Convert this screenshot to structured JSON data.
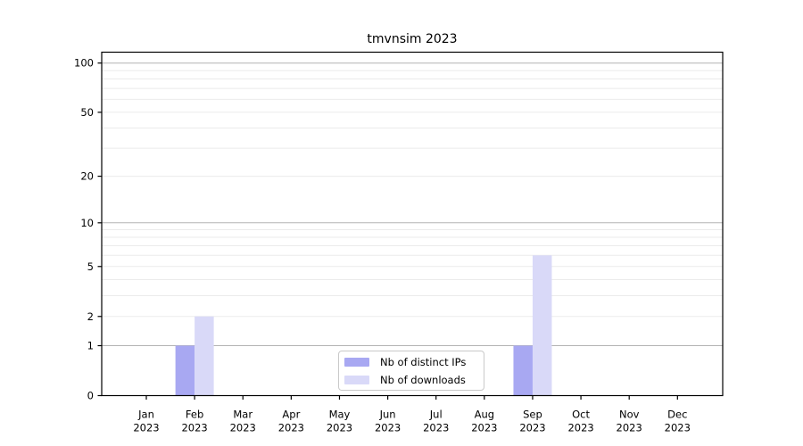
{
  "figure": {
    "title": "tmvnsim 2023"
  },
  "chart_data": {
    "type": "bar",
    "title": "tmvnsim 2023",
    "categories": [
      "Jan",
      "Feb",
      "Mar",
      "Apr",
      "May",
      "Jun",
      "Jul",
      "Aug",
      "Sep",
      "Oct",
      "Nov",
      "Dec"
    ],
    "x_year": "2023",
    "series": [
      {
        "name": "Nb of distinct IPs",
        "color": "#a8a8f2",
        "values": [
          0,
          1,
          0,
          0,
          0,
          0,
          0,
          0,
          1,
          0,
          0,
          0
        ]
      },
      {
        "name": "Nb of downloads",
        "color": "#d9d9f8",
        "values": [
          0,
          2,
          0,
          0,
          0,
          0,
          0,
          0,
          6,
          0,
          0,
          0
        ]
      }
    ],
    "y_scale": "log10(value+1)",
    "y_ticks": [
      0,
      1,
      2,
      5,
      10,
      20,
      50,
      100
    ],
    "y_decade_gridlines": [
      1,
      10,
      100
    ],
    "y_minor_gridlines": [
      2,
      3,
      4,
      5,
      6,
      7,
      8,
      9,
      20,
      30,
      40,
      50,
      60,
      70,
      80,
      90
    ],
    "ylim": [
      0,
      113
    ],
    "grid": true,
    "legend_position": "bottom-center-inside"
  },
  "legend": {
    "items": [
      {
        "label": "Nb of distinct IPs",
        "color": "#a8a8f2"
      },
      {
        "label": "Nb of downloads",
        "color": "#d9d9f8"
      }
    ]
  },
  "colors": {
    "background": "#ffffff",
    "axis": "#000000",
    "gridline_decade": "#b3b3b3",
    "gridline_minor": "#ebebeb",
    "legend_border": "#c9c9c9",
    "tick_label": "#000000"
  }
}
